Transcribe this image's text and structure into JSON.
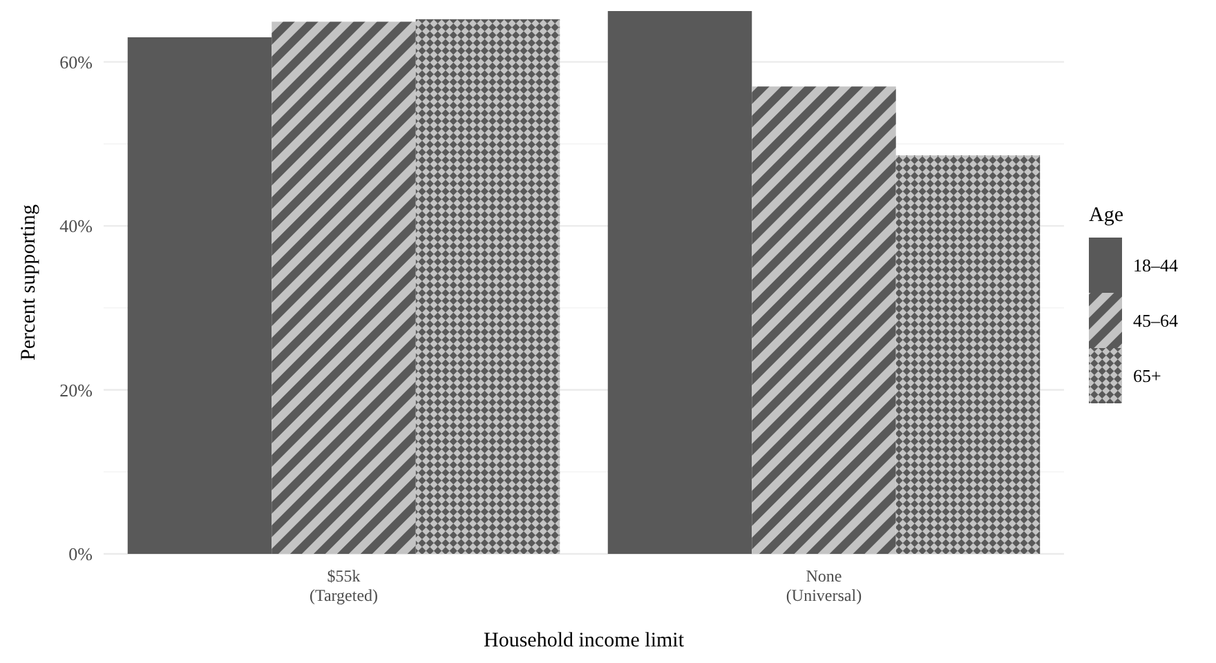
{
  "chart_data": {
    "type": "bar",
    "xlabel": "Household income limit",
    "ylabel": "Percent supporting",
    "legend_title": "Age",
    "categories": [
      "$55k\n(Targeted)",
      "None\n(Universal)"
    ],
    "series": [
      {
        "name": "18–44",
        "color": "#595959",
        "values": [
          63.0,
          66.2
        ]
      },
      {
        "name": "45–64",
        "color": "#595959",
        "values": [
          64.9,
          57.0
        ]
      },
      {
        "name": "65+",
        "color": "#595959",
        "values": [
          65.2,
          48.6
        ]
      }
    ],
    "ylim": [
      0,
      66.2
    ],
    "yticks": [
      {
        "value": 0,
        "label": "0%"
      },
      {
        "value": 10,
        "label": null
      },
      {
        "value": 20,
        "label": "20%"
      },
      {
        "value": 30,
        "label": null
      },
      {
        "value": 40,
        "label": "40%"
      },
      {
        "value": 50,
        "label": null
      },
      {
        "value": 60,
        "label": "60%"
      }
    ],
    "grid": "y",
    "legend": "right"
  }
}
